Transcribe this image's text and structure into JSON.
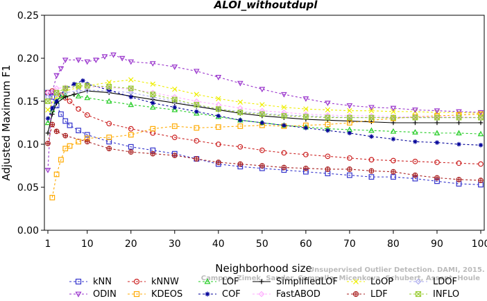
{
  "chart_data": {
    "type": "line",
    "title": "ALOI_withoutdupl",
    "xlabel": "Neighborhood size",
    "ylabel": "Adjusted Maximum F1",
    "xlim": [
      1,
      100
    ],
    "ylim": [
      0.0,
      0.25
    ],
    "xticks": [
      1,
      10,
      20,
      30,
      40,
      50,
      60,
      70,
      80,
      90,
      100
    ],
    "yticks": [
      "0.00",
      "0.05",
      "0.10",
      "0.15",
      "0.20",
      "0.25"
    ],
    "legend_position": "bottom",
    "watermark": [
      "Unsupervised Outlier Detection. DAMI, 2015.",
      "Campos, Zimek, Sander, Campello, Micenkova, Schubert, Assent, Houle"
    ],
    "series": [
      {
        "name": "kNN",
        "color": "#3333cc",
        "marker": "square",
        "dash": "3,3",
        "points": [
          [
            1,
            0.16
          ],
          [
            2,
            0.155
          ],
          [
            3,
            0.145
          ],
          [
            4,
            0.135
          ],
          [
            5,
            0.127
          ],
          [
            6,
            0.122
          ],
          [
            8,
            0.116
          ],
          [
            10,
            0.111
          ],
          [
            15,
            0.103
          ],
          [
            20,
            0.097
          ],
          [
            25,
            0.093
          ],
          [
            30,
            0.089
          ],
          [
            35,
            0.083
          ],
          [
            40,
            0.077
          ],
          [
            45,
            0.074
          ],
          [
            50,
            0.072
          ],
          [
            55,
            0.07
          ],
          [
            60,
            0.068
          ],
          [
            65,
            0.066
          ],
          [
            70,
            0.064
          ],
          [
            75,
            0.062
          ],
          [
            80,
            0.062
          ],
          [
            85,
            0.06
          ],
          [
            90,
            0.057
          ],
          [
            95,
            0.054
          ],
          [
            100,
            0.053
          ]
        ]
      },
      {
        "name": "kNNW",
        "color": "#cc2222",
        "marker": "circle",
        "dash": "3,3",
        "points": [
          [
            1,
            0.16
          ],
          [
            2,
            0.162
          ],
          [
            3,
            0.16
          ],
          [
            4,
            0.157
          ],
          [
            5,
            0.154
          ],
          [
            6,
            0.15
          ],
          [
            8,
            0.141
          ],
          [
            10,
            0.134
          ],
          [
            15,
            0.124
          ],
          [
            20,
            0.118
          ],
          [
            25,
            0.113
          ],
          [
            30,
            0.108
          ],
          [
            35,
            0.104
          ],
          [
            40,
            0.1
          ],
          [
            45,
            0.097
          ],
          [
            50,
            0.093
          ],
          [
            55,
            0.09
          ],
          [
            60,
            0.088
          ],
          [
            65,
            0.086
          ],
          [
            70,
            0.084
          ],
          [
            75,
            0.082
          ],
          [
            80,
            0.081
          ],
          [
            85,
            0.08
          ],
          [
            90,
            0.079
          ],
          [
            95,
            0.078
          ],
          [
            100,
            0.077
          ]
        ]
      },
      {
        "name": "LOF",
        "color": "#22cc22",
        "marker": "triangle",
        "dash": "3,3",
        "points": [
          [
            1,
            0.125
          ],
          [
            2,
            0.14
          ],
          [
            3,
            0.15
          ],
          [
            4,
            0.155
          ],
          [
            5,
            0.157
          ],
          [
            8,
            0.156
          ],
          [
            10,
            0.154
          ],
          [
            15,
            0.15
          ],
          [
            20,
            0.146
          ],
          [
            25,
            0.143
          ],
          [
            30,
            0.14
          ],
          [
            35,
            0.136
          ],
          [
            40,
            0.132
          ],
          [
            45,
            0.128
          ],
          [
            50,
            0.125
          ],
          [
            55,
            0.122
          ],
          [
            60,
            0.12
          ],
          [
            65,
            0.118
          ],
          [
            70,
            0.117
          ],
          [
            75,
            0.116
          ],
          [
            80,
            0.115
          ],
          [
            85,
            0.114
          ],
          [
            90,
            0.113
          ],
          [
            95,
            0.113
          ],
          [
            100,
            0.112
          ]
        ]
      },
      {
        "name": "SimplifiedLOF",
        "color": "#000000",
        "marker": "plus",
        "dash": "",
        "points": [
          [
            1,
            0.113
          ],
          [
            2,
            0.135
          ],
          [
            3,
            0.148
          ],
          [
            5,
            0.155
          ],
          [
            7,
            0.158
          ],
          [
            10,
            0.162
          ],
          [
            15,
            0.16
          ],
          [
            20,
            0.156
          ],
          [
            25,
            0.152
          ],
          [
            30,
            0.148
          ],
          [
            35,
            0.144
          ],
          [
            40,
            0.14
          ],
          [
            45,
            0.136
          ],
          [
            50,
            0.133
          ],
          [
            55,
            0.131
          ],
          [
            60,
            0.129
          ],
          [
            65,
            0.128
          ],
          [
            70,
            0.127
          ],
          [
            75,
            0.126
          ],
          [
            80,
            0.125
          ],
          [
            85,
            0.125
          ],
          [
            90,
            0.125
          ],
          [
            95,
            0.125
          ],
          [
            100,
            0.125
          ]
        ]
      },
      {
        "name": "LoOP",
        "color": "#eeee00",
        "marker": "x",
        "dash": "3,3",
        "points": [
          [
            1,
            0.14
          ],
          [
            3,
            0.155
          ],
          [
            5,
            0.162
          ],
          [
            8,
            0.166
          ],
          [
            10,
            0.168
          ],
          [
            15,
            0.172
          ],
          [
            20,
            0.175
          ],
          [
            25,
            0.17
          ],
          [
            30,
            0.164
          ],
          [
            35,
            0.158
          ],
          [
            40,
            0.153
          ],
          [
            45,
            0.149
          ],
          [
            50,
            0.146
          ],
          [
            55,
            0.143
          ],
          [
            60,
            0.141
          ],
          [
            65,
            0.14
          ],
          [
            70,
            0.139
          ],
          [
            75,
            0.139
          ],
          [
            80,
            0.138
          ],
          [
            85,
            0.138
          ],
          [
            90,
            0.137
          ],
          [
            95,
            0.137
          ],
          [
            100,
            0.136
          ]
        ]
      },
      {
        "name": "LDOF",
        "color": "#aaaaee",
        "marker": "diamond",
        "dash": "3,3",
        "points": [
          [
            1,
            0.155
          ],
          [
            3,
            0.158
          ],
          [
            5,
            0.16
          ],
          [
            8,
            0.162
          ],
          [
            10,
            0.163
          ],
          [
            15,
            0.162
          ],
          [
            20,
            0.16
          ],
          [
            25,
            0.155
          ],
          [
            30,
            0.15
          ],
          [
            35,
            0.145
          ],
          [
            40,
            0.141
          ],
          [
            45,
            0.138
          ],
          [
            50,
            0.136
          ],
          [
            55,
            0.134
          ],
          [
            60,
            0.133
          ],
          [
            65,
            0.132
          ],
          [
            70,
            0.131
          ],
          [
            75,
            0.131
          ],
          [
            80,
            0.131
          ],
          [
            85,
            0.131
          ],
          [
            90,
            0.131
          ],
          [
            95,
            0.131
          ],
          [
            100,
            0.131
          ]
        ]
      },
      {
        "name": "ODIN",
        "color": "#9933cc",
        "marker": "invtriangle",
        "dash": "3,3",
        "points": [
          [
            1,
            0.07
          ],
          [
            2,
            0.16
          ],
          [
            3,
            0.18
          ],
          [
            4,
            0.188
          ],
          [
            5,
            0.198
          ],
          [
            8,
            0.198
          ],
          [
            10,
            0.196
          ],
          [
            12,
            0.198
          ],
          [
            14,
            0.202
          ],
          [
            16,
            0.204
          ],
          [
            18,
            0.2
          ],
          [
            20,
            0.196
          ],
          [
            25,
            0.194
          ],
          [
            30,
            0.19
          ],
          [
            35,
            0.185
          ],
          [
            40,
            0.178
          ],
          [
            45,
            0.171
          ],
          [
            50,
            0.164
          ],
          [
            55,
            0.158
          ],
          [
            60,
            0.153
          ],
          [
            65,
            0.148
          ],
          [
            70,
            0.145
          ],
          [
            75,
            0.143
          ],
          [
            80,
            0.142
          ],
          [
            85,
            0.14
          ],
          [
            90,
            0.139
          ],
          [
            95,
            0.138
          ],
          [
            100,
            0.137
          ]
        ]
      },
      {
        "name": "KDEOS",
        "color": "#ffaa00",
        "marker": "square",
        "dash": "3,3",
        "points": [
          [
            2,
            0.038
          ],
          [
            3,
            0.065
          ],
          [
            4,
            0.082
          ],
          [
            5,
            0.095
          ],
          [
            6,
            0.098
          ],
          [
            8,
            0.103
          ],
          [
            10,
            0.107
          ],
          [
            15,
            0.108
          ],
          [
            20,
            0.111
          ],
          [
            25,
            0.118
          ],
          [
            30,
            0.121
          ],
          [
            35,
            0.119
          ],
          [
            40,
            0.12
          ],
          [
            45,
            0.121
          ],
          [
            50,
            0.122
          ],
          [
            55,
            0.121
          ],
          [
            60,
            0.122
          ],
          [
            65,
            0.123
          ],
          [
            70,
            0.125
          ],
          [
            75,
            0.128
          ],
          [
            80,
            0.13
          ],
          [
            85,
            0.132
          ],
          [
            90,
            0.133
          ],
          [
            95,
            0.134
          ],
          [
            100,
            0.135
          ]
        ]
      },
      {
        "name": "COF",
        "color": "#000099",
        "marker": "star",
        "dash": "3,3",
        "points": [
          [
            1,
            0.13
          ],
          [
            2,
            0.142
          ],
          [
            3,
            0.15
          ],
          [
            5,
            0.165
          ],
          [
            7,
            0.17
          ],
          [
            9,
            0.174
          ],
          [
            10,
            0.17
          ],
          [
            15,
            0.163
          ],
          [
            20,
            0.155
          ],
          [
            25,
            0.148
          ],
          [
            30,
            0.143
          ],
          [
            35,
            0.138
          ],
          [
            40,
            0.133
          ],
          [
            45,
            0.128
          ],
          [
            50,
            0.125
          ],
          [
            55,
            0.122
          ],
          [
            60,
            0.119
          ],
          [
            65,
            0.116
          ],
          [
            70,
            0.113
          ],
          [
            75,
            0.109
          ],
          [
            80,
            0.106
          ],
          [
            85,
            0.103
          ],
          [
            90,
            0.102
          ],
          [
            95,
            0.1
          ],
          [
            100,
            0.099
          ]
        ]
      },
      {
        "name": "FastABOD",
        "color": "#ffaaff",
        "marker": "diamond",
        "dash": "3,3",
        "points": [
          [
            1,
            0.16
          ],
          [
            3,
            0.165
          ],
          [
            5,
            0.166
          ],
          [
            10,
            0.167
          ],
          [
            15,
            0.166
          ],
          [
            20,
            0.164
          ],
          [
            25,
            0.16
          ],
          [
            30,
            0.155
          ],
          [
            35,
            0.15
          ],
          [
            40,
            0.146
          ],
          [
            45,
            0.142
          ],
          [
            50,
            0.139
          ],
          [
            55,
            0.137
          ],
          [
            60,
            0.135
          ],
          [
            65,
            0.134
          ],
          [
            70,
            0.133
          ],
          [
            75,
            0.133
          ],
          [
            80,
            0.132
          ],
          [
            85,
            0.132
          ],
          [
            90,
            0.132
          ],
          [
            95,
            0.132
          ],
          [
            100,
            0.131
          ]
        ]
      },
      {
        "name": "LDF",
        "color": "#aa2222",
        "marker": "circleplus",
        "dash": "3,3",
        "points": [
          [
            1,
            0.101
          ],
          [
            2,
            0.123
          ],
          [
            3,
            0.115
          ],
          [
            5,
            0.11
          ],
          [
            10,
            0.103
          ],
          [
            15,
            0.095
          ],
          [
            20,
            0.091
          ],
          [
            25,
            0.089
          ],
          [
            30,
            0.087
          ],
          [
            35,
            0.083
          ],
          [
            40,
            0.079
          ],
          [
            45,
            0.077
          ],
          [
            50,
            0.075
          ],
          [
            55,
            0.073
          ],
          [
            60,
            0.072
          ],
          [
            65,
            0.071
          ],
          [
            70,
            0.071
          ],
          [
            75,
            0.069
          ],
          [
            80,
            0.068
          ],
          [
            85,
            0.064
          ],
          [
            90,
            0.061
          ],
          [
            95,
            0.059
          ],
          [
            100,
            0.058
          ]
        ]
      },
      {
        "name": "INFLO",
        "color": "#99cc33",
        "marker": "squarex",
        "dash": "3,3",
        "points": [
          [
            1,
            0.15
          ],
          [
            3,
            0.16
          ],
          [
            5,
            0.165
          ],
          [
            8,
            0.168
          ],
          [
            10,
            0.168
          ],
          [
            15,
            0.167
          ],
          [
            20,
            0.165
          ],
          [
            25,
            0.158
          ],
          [
            30,
            0.152
          ],
          [
            35,
            0.146
          ],
          [
            40,
            0.141
          ],
          [
            45,
            0.137
          ],
          [
            50,
            0.135
          ],
          [
            55,
            0.133
          ],
          [
            60,
            0.132
          ],
          [
            65,
            0.131
          ],
          [
            70,
            0.131
          ],
          [
            75,
            0.131
          ],
          [
            80,
            0.131
          ],
          [
            85,
            0.131
          ],
          [
            90,
            0.131
          ],
          [
            95,
            0.131
          ],
          [
            100,
            0.131
          ]
        ]
      }
    ],
    "legend_rows": [
      [
        "kNN",
        "kNNW",
        "LOF",
        "SimplifiedLOF",
        "LoOP",
        "LDOF"
      ],
      [
        "ODIN",
        "KDEOS",
        "COF",
        "FastABOD",
        "LDF",
        "INFLO"
      ]
    ]
  }
}
